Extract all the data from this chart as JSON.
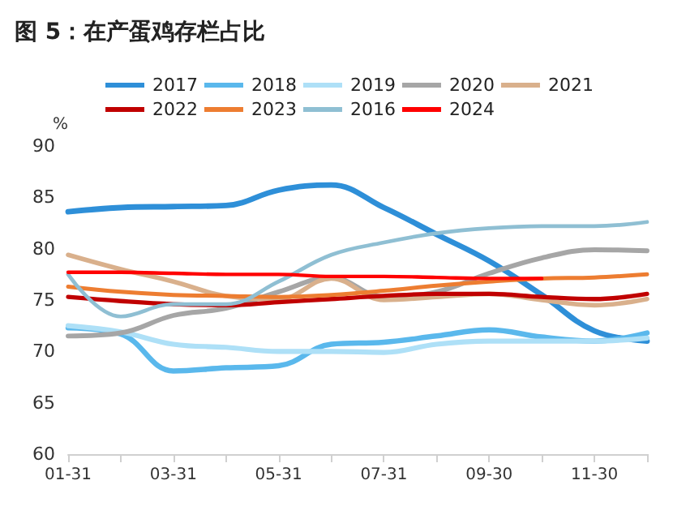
{
  "chart_data": {
    "type": "line",
    "title": "图 5：在产蛋鸡存栏占比",
    "ylabel": "%",
    "categories": [
      "01-31",
      null,
      "03-31",
      null,
      "05-31",
      null,
      "07-31",
      null,
      "09-30",
      null,
      "11-30",
      null
    ],
    "series": [
      {
        "name": "2017",
        "color": "#2e8fd8",
        "values": [
          83.6,
          84.0,
          84.1,
          84.2,
          85.7,
          86.2,
          84.0,
          81.4,
          78.8,
          75.5,
          72.0,
          71.0
        ]
      },
      {
        "name": "2018",
        "color": "#5ab8ec",
        "values": [
          72.3,
          71.7,
          68.1,
          68.4,
          68.6,
          70.7,
          70.9,
          71.5,
          72.1,
          71.4,
          71.0,
          71.8
        ]
      },
      {
        "name": "2019",
        "color": "#aee0f7",
        "values": [
          72.5,
          71.9,
          70.7,
          70.4,
          70.0,
          70.0,
          69.9,
          70.7,
          71.0,
          71.0,
          71.0,
          71.3
        ]
      },
      {
        "name": "2020",
        "color": "#a6a6a6",
        "values": [
          71.5,
          71.8,
          73.5,
          74.2,
          75.8,
          77.2,
          75.3,
          75.8,
          77.6,
          79.1,
          79.9,
          79.8
        ]
      },
      {
        "name": "2021",
        "color": "#d9b08c",
        "values": [
          79.4,
          78.0,
          76.8,
          75.4,
          75.1,
          77.1,
          75.0,
          75.3,
          75.6,
          75.0,
          74.5,
          75.1
        ]
      },
      {
        "name": "2022",
        "color": "#c00000",
        "values": [
          75.3,
          74.9,
          74.6,
          74.5,
          74.8,
          75.1,
          75.4,
          75.6,
          75.6,
          75.3,
          75.1,
          75.6
        ]
      },
      {
        "name": "2023",
        "color": "#ed7d31",
        "values": [
          76.3,
          75.8,
          75.5,
          75.4,
          75.3,
          75.5,
          75.9,
          76.4,
          76.8,
          77.1,
          77.2,
          77.5
        ]
      },
      {
        "name": "2016",
        "color": "#8fbfd3",
        "values": [
          77.5,
          73.4,
          74.6,
          74.6,
          76.8,
          79.4,
          80.6,
          81.5,
          82.0,
          82.2,
          82.2,
          82.6
        ]
      },
      {
        "name": "2024",
        "color": "#ff0000",
        "values": [
          77.7,
          77.7,
          77.6,
          77.5,
          77.5,
          77.3,
          77.3,
          77.2,
          77.1,
          77.1,
          null,
          null
        ]
      }
    ],
    "ylim": [
      60,
      90
    ],
    "yticks": [
      60,
      65,
      70,
      75,
      80,
      85,
      90
    ],
    "grid": false,
    "legend": "top",
    "marker": "none",
    "line_style": "solid"
  }
}
